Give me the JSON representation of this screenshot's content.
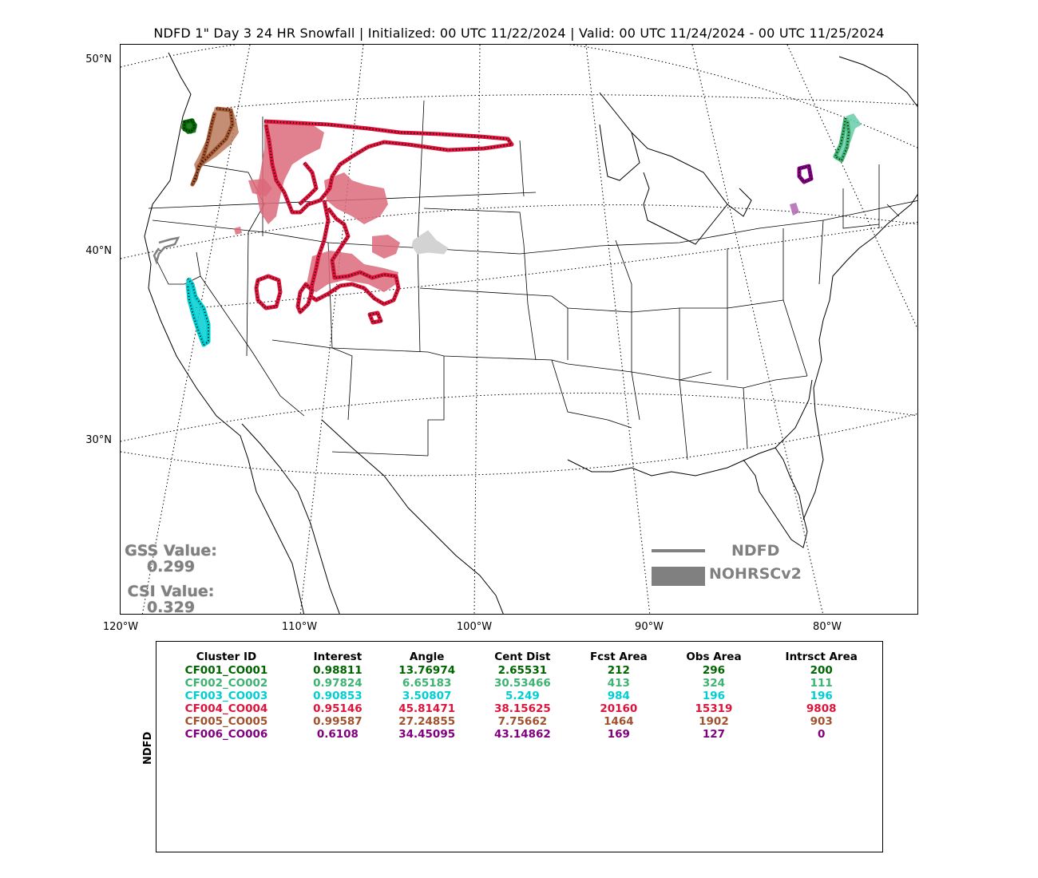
{
  "title": "NDFD 1\" Day 3 24 HR Snowfall | Initialized: 00 UTC 11/22/2024 | Valid: 00 UTC 11/24/2024 - 00 UTC 11/25/2024",
  "lat_labels": [
    "50°N",
    "40°N",
    "30°N"
  ],
  "lon_labels": [
    "120°W",
    "110°W",
    "100°W",
    "90°W",
    "80°W"
  ],
  "gss": {
    "label": "GSS Value:",
    "value": "0.299"
  },
  "csi": {
    "label": "CSI Value:",
    "value": "0.329"
  },
  "legend": {
    "line_label": "NDFD",
    "fill_label": "NOHRSCv2",
    "color": "#808080"
  },
  "side_label": "NDFD",
  "table": {
    "headers": [
      "Cluster ID",
      "Interest",
      "Angle",
      "Cent Dist",
      "Fcst Area",
      "Obs Area",
      "Intrsct Area"
    ],
    "rows": [
      {
        "color": "#006400",
        "cells": [
          "CF001_CO001",
          "0.98811",
          "13.76974",
          "2.65531",
          "212",
          "296",
          "200"
        ]
      },
      {
        "color": "#3cb371",
        "cells": [
          "CF002_CO002",
          "0.97824",
          "6.65183",
          "30.53466",
          "413",
          "324",
          "111"
        ]
      },
      {
        "color": "#00ced1",
        "cells": [
          "CF003_CO003",
          "0.90853",
          "3.50807",
          "5.249",
          "984",
          "196",
          "196"
        ]
      },
      {
        "color": "#dc143c",
        "cells": [
          "CF004_CO004",
          "0.95146",
          "45.81471",
          "38.15625",
          "20160",
          "15319",
          "9808"
        ]
      },
      {
        "color": "#a0522d",
        "cells": [
          "CF005_CO005",
          "0.99587",
          "27.24855",
          "7.75662",
          "1464",
          "1902",
          "903"
        ]
      },
      {
        "color": "#800080",
        "cells": [
          "CF006_CO006",
          "0.6108",
          "34.45095",
          "43.14862",
          "169",
          "127",
          "0"
        ]
      }
    ]
  },
  "clusters": [
    {
      "id": "CF001_CO001",
      "color": "#006400",
      "fill": "#006400"
    },
    {
      "id": "CF002_CO002",
      "color": "#3cb371",
      "fill": "#66cdaa"
    },
    {
      "id": "CF003_CO003",
      "color": "#00ced1",
      "fill": "#00ced1"
    },
    {
      "id": "CF004_CO004",
      "color": "#dc143c",
      "fill": "#dc6a7a"
    },
    {
      "id": "CF005_CO005",
      "color": "#a0522d",
      "fill": "#b97a5b"
    },
    {
      "id": "CF006_CO006",
      "color": "#800080",
      "fill": "#b266b2"
    }
  ]
}
